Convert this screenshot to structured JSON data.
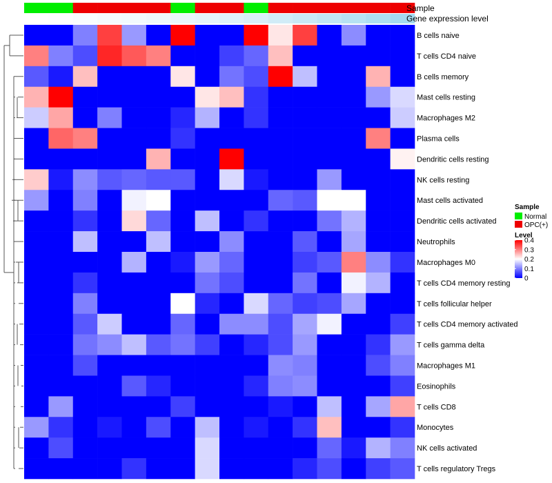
{
  "chart_data": {
    "type": "heatmap",
    "title": "",
    "rows": [
      "B cells naive",
      "T cells CD4 naive",
      "B cells memory",
      "Mast cells resting",
      "Macrophages M2",
      "Plasma cells",
      "Dendritic cells resting",
      "NK cells resting",
      "Mast cells activated",
      "Dendritic cells activated",
      "Neutrophils",
      "Macrophages M0",
      "T cells CD4 memory resting",
      "T cells follicular helper",
      "T cells CD4 memory activated",
      "T cells gamma delta",
      "Macrophages M1",
      "Eosinophils",
      "T cells CD8",
      "Monocytes",
      "NK cells activated",
      "T cells regulatory  Tregs"
    ],
    "n_columns": 16,
    "values": [
      [
        0,
        0,
        0.1,
        0.35,
        0.12,
        0,
        0.4,
        0,
        0,
        0.4,
        0.22,
        0.35,
        0,
        0.11,
        0,
        0
      ],
      [
        0.3,
        0.1,
        0.06,
        0.37,
        0.33,
        0.3,
        0,
        0,
        0.05,
        0.08,
        0.25,
        0,
        0,
        0,
        0,
        0
      ],
      [
        0.07,
        0.02,
        0.25,
        0,
        0,
        0,
        0.22,
        0,
        0.09,
        0.06,
        0.4,
        0.15,
        0,
        0,
        0.26,
        0
      ],
      [
        0.26,
        0.4,
        0,
        0,
        0,
        0,
        0,
        0.22,
        0.25,
        0.04,
        0,
        0,
        0,
        0,
        0.12,
        0.17
      ],
      [
        0.16,
        0.27,
        0,
        0.1,
        0,
        0,
        0.03,
        0.14,
        0,
        0.04,
        0,
        0,
        0,
        0,
        0,
        0.16
      ],
      [
        0,
        0.32,
        0.3,
        0,
        0,
        0,
        0.04,
        0,
        0,
        0,
        0,
        0,
        0,
        0,
        0.3,
        0
      ],
      [
        0,
        0,
        0,
        0,
        0,
        0.26,
        0,
        0,
        0.4,
        0,
        0,
        0,
        0,
        0,
        0,
        0.21
      ],
      [
        0.24,
        0.02,
        0.11,
        0.07,
        0.08,
        0.07,
        0.07,
        0,
        0.17,
        0.02,
        0,
        0,
        0.12,
        0,
        0,
        0
      ],
      [
        0.12,
        0,
        0.1,
        0,
        0.19,
        0.2,
        0,
        0,
        0,
        0,
        0.08,
        0.07,
        0.2,
        0.2,
        0,
        0
      ],
      [
        0,
        0,
        0.04,
        0,
        0.23,
        0.08,
        0,
        0.15,
        0,
        0.04,
        0,
        0,
        0.09,
        0.14,
        0,
        0
      ],
      [
        0,
        0,
        0.15,
        0,
        0,
        0.15,
        0,
        0,
        0.11,
        0,
        0,
        0.07,
        0,
        0.13,
        0,
        0
      ],
      [
        0,
        0,
        0,
        0,
        0.14,
        0,
        0.02,
        0.12,
        0.08,
        0,
        0,
        0.05,
        0.07,
        0.3,
        0.11,
        0.04
      ],
      [
        0,
        0,
        0.04,
        0,
        0,
        0,
        0,
        0.09,
        0.06,
        0,
        0,
        0.09,
        0,
        0.19,
        0.14,
        0
      ],
      [
        0,
        0,
        0.1,
        0,
        0,
        0,
        0.2,
        0.03,
        0,
        0.17,
        0.08,
        0.05,
        0.06,
        0.13,
        0,
        0
      ],
      [
        0,
        0,
        0.07,
        0.16,
        0,
        0,
        0.08,
        0,
        0.11,
        0.11,
        0.06,
        0.13,
        0.19,
        0,
        0,
        0.05
      ],
      [
        0,
        0,
        0.09,
        0.11,
        0.15,
        0.07,
        0.09,
        0.05,
        0,
        0.03,
        0.06,
        0.12,
        0,
        0,
        0.04,
        0.12
      ],
      [
        0,
        0,
        0.06,
        0,
        0,
        0,
        0,
        0,
        0,
        0,
        0.11,
        0.1,
        0,
        0,
        0.06,
        0.1
      ],
      [
        0,
        0,
        0,
        0,
        0.07,
        0.03,
        0,
        0,
        0,
        0.03,
        0.1,
        0.11,
        0,
        0,
        0,
        0.05
      ],
      [
        0,
        0.12,
        0,
        0,
        0,
        0,
        0.05,
        0,
        0,
        0,
        0.02,
        0,
        0.15,
        0,
        0.13,
        0.27
      ],
      [
        0.12,
        0.04,
        0,
        0.02,
        0,
        0.06,
        0,
        0.15,
        0,
        0.02,
        0,
        0.04,
        0.25,
        0,
        0,
        0.04
      ],
      [
        0,
        0.06,
        0,
        0,
        0,
        0,
        0,
        0.17,
        0,
        0,
        0,
        0,
        0.08,
        0.02,
        0.14,
        0.1
      ],
      [
        0,
        0,
        0,
        0,
        0.04,
        0,
        0,
        0.17,
        0,
        0,
        0,
        0.03,
        0.06,
        0,
        0.05,
        0.07
      ]
    ],
    "column_annotations": {
      "sample": [
        "Normal",
        "Normal",
        "OPC(+)",
        "OPC(+)",
        "OPC(+)",
        "OPC(+)",
        "Normal",
        "OPC(+)",
        "OPC(+)",
        "Normal",
        "OPC(+)",
        "OPC(+)",
        "OPC(+)",
        "OPC(+)",
        "OPC(+)",
        "OPC(+)"
      ],
      "gene_expression_level": [
        0.0,
        0.02,
        0.05,
        0.08,
        0.11,
        0.14,
        0.18,
        0.22,
        0.27,
        0.32,
        0.38,
        0.45,
        0.52,
        0.6,
        0.68,
        0.76
      ]
    },
    "row_dendrogram": [
      [
        "B cells naive",
        "T cells CD4 naive"
      ],
      [
        "Mast cells resting",
        "Macrophages M2"
      ],
      [
        "Mast cells activated",
        "Dendritic cells activated"
      ],
      [
        "Macrophages M0",
        "T cells CD4 memory resting"
      ],
      [
        "T cells CD4 memory activated",
        "T cells gamma delta"
      ],
      [
        "Macrophages M1",
        "Eosinophils"
      ],
      [
        "Monocytes",
        "NK cells activated"
      ]
    ],
    "legend": {
      "sample_title": "Sample",
      "sample_items": [
        {
          "label": "Normal",
          "color": "#00ee00"
        },
        {
          "label": "OPC(+)",
          "color": "#ee0000"
        }
      ],
      "level_title": "Level",
      "level_ticks": [
        {
          "label": "0.4",
          "value": 0.4
        },
        {
          "label": "0.3",
          "value": 0.3
        },
        {
          "label": "0.2",
          "value": 0.2
        },
        {
          "label": "0.1",
          "value": 0.1
        },
        {
          "label": "0",
          "value": 0
        }
      ],
      "level_range": [
        0,
        0.4
      ]
    },
    "annotation_labels": {
      "sample": "Sample",
      "gene_expression_level": "Gene expression level"
    },
    "colors": {
      "low": "#0000ff",
      "mid": "#ffffff",
      "high": "#ff0000",
      "normal": "#00ee00",
      "opc": "#ee0000",
      "ann_low": "#ffffff",
      "ann_high": "#87ceeb"
    }
  }
}
